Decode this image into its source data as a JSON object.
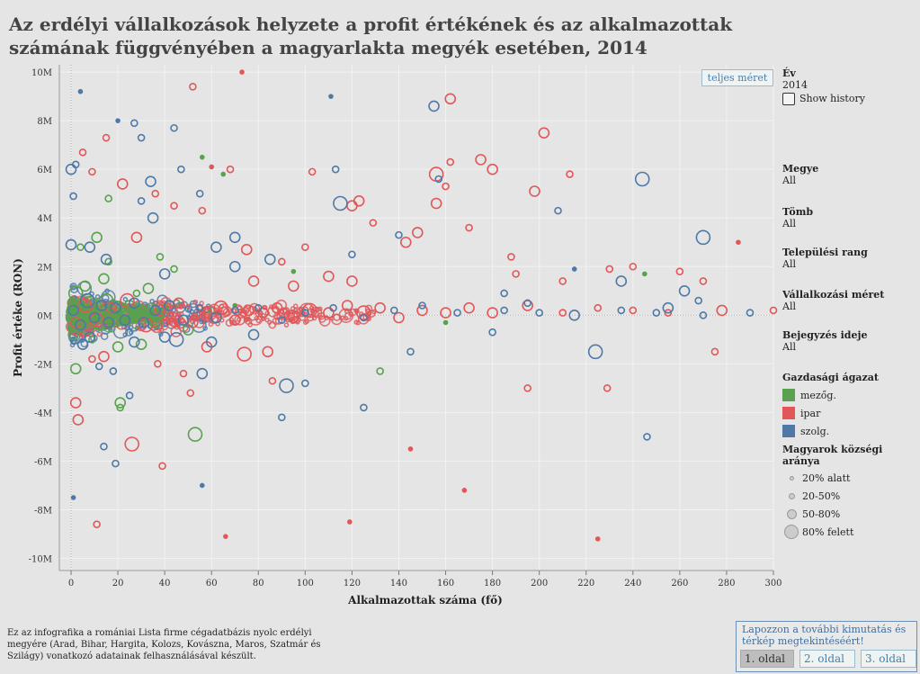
{
  "title": "Az erdélyi vállalkozások helyzete a profit értékének és az alkalmazottak számának függvényében a magyarlakta megyék esetében, 2014",
  "fullsize_button": "teljes méret",
  "filters": {
    "ev": {
      "label": "Év",
      "value": "2014"
    },
    "show_history": "Show history",
    "megye": {
      "label": "Megye",
      "value": "All"
    },
    "tomb": {
      "label": "Tömb",
      "value": "All"
    },
    "telepulesi_rang": {
      "label": "Települési rang",
      "value": "All"
    },
    "vallalkozasi_meret": {
      "label": "Vállalkozási méret",
      "value": "All"
    },
    "bejegyzes_ideje": {
      "label": "Bejegyzés ideje",
      "value": "All"
    }
  },
  "color_legend": {
    "title": "Gazdasági ágazat",
    "items": [
      {
        "label": "mezőg.",
        "color": "#59a14f"
      },
      {
        "label": "ipar",
        "color": "#e15759"
      },
      {
        "label": "szolg.",
        "color": "#4e79a7"
      }
    ]
  },
  "size_legend": {
    "title": "Magyarok községi aránya",
    "items": [
      {
        "label": "20% alatt"
      },
      {
        "label": "20-50%"
      },
      {
        "label": "50-80%"
      },
      {
        "label": "80% felett"
      }
    ]
  },
  "footnote": "Ez az infografika a romániai Lista firme cégadatbázis nyolc erdélyi megyére (Arad, Bihar, Hargita, Kolozs, Kovászna, Maros, Szatmár és Szilágy) vonatkozó adatainak felhasználásával készült.",
  "nav": {
    "text": "Lapozzon a további kimutatás és térkép megtekintéséért!",
    "buttons": [
      "1. oldal",
      "2. oldal",
      "3. oldal"
    ]
  },
  "chart_data": {
    "type": "scatter",
    "xlabel": "Alkalmazottak száma (fő)",
    "ylabel": "Profit értéke (RON)",
    "xlim": [
      -5,
      300
    ],
    "ylim": [
      -10.5,
      10.3
    ],
    "x_ticks": [
      0,
      20,
      40,
      60,
      80,
      100,
      120,
      140,
      160,
      180,
      200,
      220,
      240,
      260,
      280,
      300
    ],
    "y_ticks": [
      -10,
      -8,
      -6,
      -4,
      -2,
      0,
      2,
      4,
      6,
      8,
      10
    ],
    "y_tick_labels": [
      "-10M",
      "-8M",
      "-6M",
      "-4M",
      "-2M",
      "0M",
      "2M",
      "4M",
      "6M",
      "8M",
      "10M"
    ],
    "grid": true,
    "size_classes": [
      2,
      3.5,
      5.5,
      7.5
    ],
    "series": [
      {
        "name": "mezőg.",
        "color": "#59a14f",
        "points": [
          [
            3,
            0.3,
            3
          ],
          [
            5,
            -0.2,
            2
          ],
          [
            8,
            0.5,
            3
          ],
          [
            10,
            0.1,
            1
          ],
          [
            12,
            -0.4,
            2
          ],
          [
            15,
            0.6,
            3
          ],
          [
            18,
            0.2,
            2
          ],
          [
            22,
            -0.3,
            1
          ],
          [
            25,
            0.4,
            2
          ],
          [
            30,
            0.1,
            3
          ],
          [
            35,
            -0.2,
            2
          ],
          [
            40,
            0.3,
            1
          ],
          [
            6,
            1.2,
            2
          ],
          [
            9,
            -1.0,
            1
          ],
          [
            14,
            1.5,
            2
          ],
          [
            20,
            -1.3,
            2
          ],
          [
            28,
            0.9,
            1
          ],
          [
            33,
            1.1,
            2
          ],
          [
            45,
            0.5,
            1
          ],
          [
            50,
            -0.6,
            2
          ],
          [
            60,
            0.2,
            1
          ],
          [
            70,
            0.4,
            0
          ],
          [
            4,
            2.8,
            1
          ],
          [
            11,
            3.2,
            2
          ],
          [
            16,
            4.8,
            1
          ],
          [
            2,
            -2.2,
            2
          ],
          [
            21,
            -3.6,
            2
          ],
          [
            21,
            -3.8,
            1
          ],
          [
            53,
            -4.9,
            3
          ],
          [
            132,
            -2.3,
            1
          ],
          [
            56,
            6.5,
            0
          ],
          [
            65,
            5.8,
            0
          ],
          [
            95,
            1.8,
            0
          ],
          [
            160,
            -0.3,
            0
          ],
          [
            245,
            1.7,
            0
          ],
          [
            30,
            -1.2,
            2
          ],
          [
            16,
            2.2,
            1
          ],
          [
            38,
            2.4,
            1
          ],
          [
            44,
            1.9,
            1
          ],
          [
            1,
            -0.8,
            2
          ],
          [
            2,
            0.9,
            3
          ],
          [
            7,
            -0.5,
            3
          ]
        ]
      },
      {
        "name": "ipar",
        "color": "#e15759",
        "points": [
          [
            2,
            -0.3,
            2
          ],
          [
            6,
            0.4,
            3
          ],
          [
            11,
            -0.2,
            3
          ],
          [
            17,
            0.3,
            2
          ],
          [
            24,
            0.6,
            3
          ],
          [
            32,
            -0.4,
            3
          ],
          [
            38,
            0.2,
            2
          ],
          [
            46,
            0.5,
            2
          ],
          [
            52,
            -0.3,
            2
          ],
          [
            58,
            0.1,
            2
          ],
          [
            64,
            0.3,
            3
          ],
          [
            70,
            -0.2,
            2
          ],
          [
            76,
            0.2,
            2
          ],
          [
            82,
            0.1,
            2
          ],
          [
            88,
            0.3,
            2
          ],
          [
            95,
            -0.1,
            2
          ],
          [
            102,
            0.2,
            3
          ],
          [
            110,
            0.1,
            2
          ],
          [
            118,
            0.4,
            2
          ],
          [
            125,
            0.1,
            3
          ],
          [
            132,
            0.3,
            2
          ],
          [
            140,
            -0.1,
            2
          ],
          [
            150,
            0.2,
            2
          ],
          [
            160,
            0.1,
            2
          ],
          [
            170,
            0.3,
            2
          ],
          [
            180,
            0.1,
            2
          ],
          [
            195,
            0.4,
            2
          ],
          [
            210,
            0.1,
            1
          ],
          [
            225,
            0.3,
            1
          ],
          [
            240,
            0.2,
            1
          ],
          [
            255,
            0.1,
            1
          ],
          [
            278,
            0.2,
            2
          ],
          [
            300,
            0.2,
            1
          ],
          [
            22,
            5.4,
            2
          ],
          [
            28,
            3.2,
            2
          ],
          [
            44,
            4.5,
            1
          ],
          [
            60,
            6.1,
            0
          ],
          [
            68,
            6.0,
            1
          ],
          [
            103,
            5.9,
            1
          ],
          [
            120,
            4.5,
            2
          ],
          [
            123,
            4.7,
            2
          ],
          [
            143,
            3.0,
            2
          ],
          [
            148,
            3.4,
            2
          ],
          [
            156,
            4.6,
            2
          ],
          [
            156,
            5.8,
            3
          ],
          [
            162,
            8.9,
            2
          ],
          [
            160,
            5.3,
            1
          ],
          [
            162,
            6.3,
            1
          ],
          [
            175,
            6.4,
            2
          ],
          [
            180,
            6.0,
            2
          ],
          [
            198,
            5.1,
            2
          ],
          [
            202,
            7.5,
            2
          ],
          [
            213,
            5.8,
            1
          ],
          [
            188,
            2.4,
            1
          ],
          [
            240,
            2.0,
            1
          ],
          [
            170,
            3.6,
            1
          ],
          [
            190,
            1.7,
            1
          ],
          [
            210,
            1.4,
            1
          ],
          [
            230,
            1.9,
            1
          ],
          [
            110,
            1.6,
            2
          ],
          [
            100,
            2.8,
            1
          ],
          [
            90,
            2.2,
            1
          ],
          [
            78,
            1.4,
            2
          ],
          [
            84,
            -1.5,
            2
          ],
          [
            74,
            -1.6,
            3
          ],
          [
            58,
            -1.3,
            2
          ],
          [
            48,
            -2.4,
            1
          ],
          [
            37,
            -2.0,
            1
          ],
          [
            14,
            -1.7,
            2
          ],
          [
            9,
            -1.8,
            1
          ],
          [
            2,
            -3.6,
            2
          ],
          [
            3,
            -4.3,
            2
          ],
          [
            26,
            -5.3,
            3
          ],
          [
            39,
            -6.2,
            1
          ],
          [
            51,
            -3.2,
            1
          ],
          [
            86,
            -2.7,
            1
          ],
          [
            119,
            -8.5,
            0
          ],
          [
            11,
            -8.6,
            1
          ],
          [
            66,
            -9.1,
            0
          ],
          [
            225,
            -9.2,
            0
          ],
          [
            168,
            -7.2,
            0
          ],
          [
            145,
            -5.5,
            0
          ],
          [
            52,
            9.4,
            1
          ],
          [
            73,
            10,
            0
          ],
          [
            195,
            -3.0,
            1
          ],
          [
            275,
            -1.5,
            1
          ],
          [
            229,
            -3.0,
            1
          ],
          [
            260,
            1.8,
            1
          ],
          [
            270,
            1.4,
            1
          ],
          [
            285,
            3.0,
            0
          ],
          [
            15,
            7.3,
            1
          ],
          [
            5,
            6.7,
            1
          ],
          [
            9,
            5.9,
            1
          ],
          [
            36,
            5.0,
            1
          ],
          [
            56,
            4.3,
            1
          ],
          [
            129,
            3.8,
            1
          ],
          [
            75,
            2.7,
            2
          ],
          [
            95,
            1.2,
            2
          ],
          [
            120,
            1.4,
            2
          ]
        ]
      },
      {
        "name": "szolg.",
        "color": "#4e79a7",
        "points": [
          [
            1,
            0.2,
            2
          ],
          [
            4,
            -0.4,
            2
          ],
          [
            7,
            0.6,
            3
          ],
          [
            10,
            -0.1,
            2
          ],
          [
            13,
            0.4,
            2
          ],
          [
            16,
            -0.3,
            2
          ],
          [
            19,
            0.3,
            2
          ],
          [
            23,
            -0.2,
            2
          ],
          [
            27,
            0.5,
            2
          ],
          [
            31,
            -0.3,
            2
          ],
          [
            36,
            0.2,
            2
          ],
          [
            42,
            0.4,
            2
          ],
          [
            48,
            -0.2,
            2
          ],
          [
            55,
            0.3,
            1
          ],
          [
            62,
            -0.1,
            2
          ],
          [
            70,
            0.2,
            1
          ],
          [
            80,
            0.3,
            1
          ],
          [
            90,
            -0.2,
            1
          ],
          [
            100,
            0.1,
            1
          ],
          [
            112,
            0.3,
            1
          ],
          [
            125,
            -0.1,
            1
          ],
          [
            138,
            0.2,
            1
          ],
          [
            150,
            0.4,
            1
          ],
          [
            165,
            0.1,
            1
          ],
          [
            185,
            0.2,
            1
          ],
          [
            200,
            0.1,
            1
          ],
          [
            215,
            0.0,
            2
          ],
          [
            235,
            0.2,
            1
          ],
          [
            250,
            0.1,
            1
          ],
          [
            270,
            0.0,
            1
          ],
          [
            290,
            0.1,
            1
          ],
          [
            2,
            6.2,
            1
          ],
          [
            0,
            6.0,
            2
          ],
          [
            1,
            4.9,
            1
          ],
          [
            4,
            9.2,
            0
          ],
          [
            20,
            8.0,
            0
          ],
          [
            27,
            7.9,
            1
          ],
          [
            30,
            7.3,
            1
          ],
          [
            34,
            5.5,
            2
          ],
          [
            44,
            7.7,
            1
          ],
          [
            47,
            6.0,
            1
          ],
          [
            55,
            5.0,
            1
          ],
          [
            30,
            4.7,
            1
          ],
          [
            35,
            4.0,
            2
          ],
          [
            70,
            3.2,
            2
          ],
          [
            70,
            2.0,
            2
          ],
          [
            62,
            2.8,
            2
          ],
          [
            85,
            2.3,
            2
          ],
          [
            40,
            1.7,
            2
          ],
          [
            15,
            2.3,
            2
          ],
          [
            8,
            2.8,
            2
          ],
          [
            0,
            2.9,
            2
          ],
          [
            111,
            9.0,
            0
          ],
          [
            115,
            4.6,
            3
          ],
          [
            113,
            6.0,
            1
          ],
          [
            155,
            8.6,
            2
          ],
          [
            157,
            5.6,
            1
          ],
          [
            208,
            4.3,
            1
          ],
          [
            244,
            5.6,
            3
          ],
          [
            270,
            3.2,
            3
          ],
          [
            235,
            1.4,
            2
          ],
          [
            262,
            1.0,
            2
          ],
          [
            268,
            0.6,
            1
          ],
          [
            185,
            0.9,
            1
          ],
          [
            140,
            3.3,
            1
          ],
          [
            120,
            2.5,
            1
          ],
          [
            5,
            -1.2,
            2
          ],
          [
            12,
            -2.1,
            1
          ],
          [
            18,
            -2.3,
            1
          ],
          [
            25,
            -3.3,
            1
          ],
          [
            14,
            -5.4,
            1
          ],
          [
            19,
            -6.1,
            1
          ],
          [
            56,
            -2.4,
            2
          ],
          [
            92,
            -2.9,
            3
          ],
          [
            100,
            -2.8,
            1
          ],
          [
            90,
            -4.2,
            1
          ],
          [
            145,
            -1.5,
            1
          ],
          [
            224,
            -1.5,
            3
          ],
          [
            246,
            -5.0,
            1
          ],
          [
            125,
            -3.8,
            1
          ],
          [
            56,
            -7.0,
            0
          ],
          [
            1,
            -7.5,
            0
          ],
          [
            45,
            -1.0,
            3
          ],
          [
            40,
            -0.9,
            2
          ],
          [
            78,
            -0.8,
            2
          ],
          [
            60,
            -1.1,
            2
          ],
          [
            27,
            -1.1,
            2
          ],
          [
            8,
            -0.9,
            2
          ],
          [
            215,
            1.9,
            0
          ],
          [
            195,
            0.5,
            1
          ],
          [
            255,
            0.3,
            2
          ],
          [
            180,
            -0.7,
            1
          ]
        ]
      }
    ]
  }
}
